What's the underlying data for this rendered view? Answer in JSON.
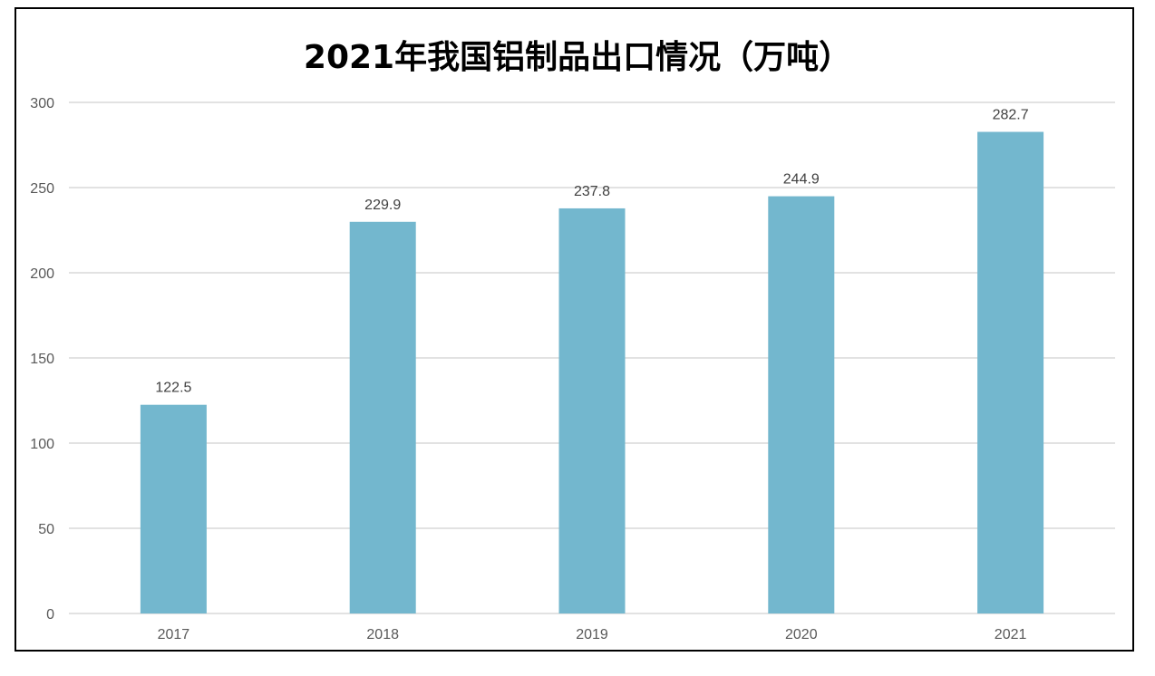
{
  "chart_data": {
    "type": "bar",
    "title": "2021年我国铝制品出口情况（万吨）",
    "categories": [
      "2017",
      "2018",
      "2019",
      "2020",
      "2021"
    ],
    "values": [
      122.5,
      229.9,
      237.8,
      244.9,
      282.7
    ],
    "data_labels": [
      "122.5",
      "229.9",
      "237.8",
      "244.9",
      "282.7"
    ],
    "ylim": [
      0,
      300
    ],
    "yticks": [
      0,
      50,
      100,
      150,
      200,
      250,
      300
    ],
    "ytick_labels": [
      "0",
      "50",
      "100",
      "150",
      "200",
      "250",
      "300"
    ],
    "grid": true,
    "legend": "none",
    "bar_color": "#73B7CE",
    "grid_color": "#D9D9D9",
    "xlabel": "",
    "ylabel": ""
  }
}
